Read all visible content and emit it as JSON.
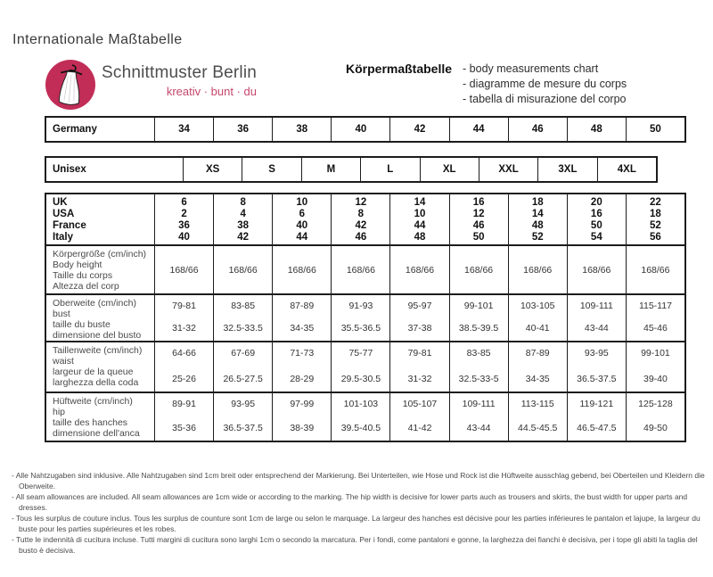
{
  "page": {
    "title": "Internationale Maßtabelle"
  },
  "brand": {
    "name": "Schnittmuster Berlin",
    "tagline": "kreativ · bunt · du"
  },
  "colors": {
    "brand_pink": "#c22d58",
    "tagline_pink": "#c4476d",
    "border": "#1c1c1c"
  },
  "header": {
    "title": "Körpermaßtabelle",
    "subtitles": [
      "- body measurements chart",
      "- diagramme de mesure du corps",
      "- tabella di misurazione del corpo"
    ]
  },
  "germany_row": {
    "label": "Germany",
    "values": [
      "34",
      "36",
      "38",
      "40",
      "42",
      "44",
      "46",
      "48",
      "50"
    ]
  },
  "unisex_row": {
    "label": "Unisex",
    "values": [
      "XS",
      "S",
      "M",
      "L",
      "XL",
      "XXL",
      "3XL",
      "4XL"
    ]
  },
  "size_table": {
    "systems": [
      {
        "label": "UK",
        "values": [
          "6",
          "8",
          "10",
          "12",
          "14",
          "16",
          "18",
          "20",
          "22"
        ]
      },
      {
        "label": "USA",
        "values": [
          "2",
          "4",
          "6",
          "8",
          "10",
          "12",
          "14",
          "16",
          "18"
        ]
      },
      {
        "label": "France",
        "values": [
          "36",
          "38",
          "40",
          "42",
          "44",
          "46",
          "48",
          "50",
          "52"
        ]
      },
      {
        "label": "Italy",
        "values": [
          "40",
          "42",
          "44",
          "46",
          "48",
          "50",
          "52",
          "54",
          "56"
        ]
      }
    ],
    "measurements": [
      {
        "labels": [
          "Körpergröße (cm/inch)",
          "Body height",
          "Taille du corps",
          "Altezza del corp"
        ],
        "cm": [
          "168/66",
          "168/66",
          "168/66",
          "168/66",
          "168/66",
          "168/66",
          "168/66",
          "168/66",
          "168/66"
        ],
        "inch": []
      },
      {
        "labels": [
          "Oberweite (cm/inch)",
          "bust",
          "taille du buste",
          "dimensione del busto"
        ],
        "cm": [
          "79-81",
          "83-85",
          "87-89",
          "91-93",
          "95-97",
          "99-101",
          "103-105",
          "109-111",
          "115-117"
        ],
        "inch": [
          "31-32",
          "32.5-33.5",
          "34-35",
          "35.5-36.5",
          "37-38",
          "38.5-39.5",
          "40-41",
          "43-44",
          "45-46"
        ]
      },
      {
        "labels": [
          "Taillenweite (cm/inch)",
          "waist",
          "largeur de la queue",
          "larghezza della coda"
        ],
        "cm": [
          "64-66",
          "67-69",
          "71-73",
          "75-77",
          "79-81",
          "83-85",
          "87-89",
          "93-95",
          "99-101"
        ],
        "inch": [
          "25-26",
          "26.5-27.5",
          "28-29",
          "29.5-30.5",
          "31-32",
          "32.5-33-5",
          "34-35",
          "36.5-37.5",
          "39-40"
        ]
      },
      {
        "labels": [
          "Hüftweite (cm/inch)",
          "hip",
          "taille des hanches",
          "dimensione dell'anca"
        ],
        "cm": [
          "89-91",
          "93-95",
          "97-99",
          "101-103",
          "105-107",
          "109-111",
          "113-115",
          "119-121",
          "125-128"
        ],
        "inch": [
          "35-36",
          "36.5-37.5",
          "38-39",
          "39.5-40.5",
          "41-42",
          "43-44",
          "44.5-45.5",
          "46.5-47.5",
          "49-50"
        ]
      }
    ]
  },
  "footnotes": [
    "- Alle Nahtzugaben sind inklusive. Alle Nahtzugaben sind 1cm breit oder entsprechend der Markierung. Bei Unterteilen, wie Hose und Rock ist die Hüftweite ausschlag gebend, bei Oberteilen und Kleidern die Oberweite.",
    "- All seam allowances are included. All seam allowances are 1cm wide or according to the marking. The hip width is decisive for lower parts auch as trousers and skirts, the bust width for upper parts and dresses.",
    "- Tous les surplus de couture inclus. Tous les surplus de counture sont 1cm de large ou selon le marquage. La largeur des hanches est décisive pour les parties inférieures le pantalon et lajupe, la largeur du buste pour les parties supérieures et les robes.",
    "- Tutte le indennità di cucitura incluse. Tutti margini di cucitura sono larghi 1cm o secondo la marcatura. Per i fondi, come pantaloni e gonne, la larghezza dei fianchi è decisiva, per i tope gli abiti la taglia del busto è decisiva."
  ]
}
